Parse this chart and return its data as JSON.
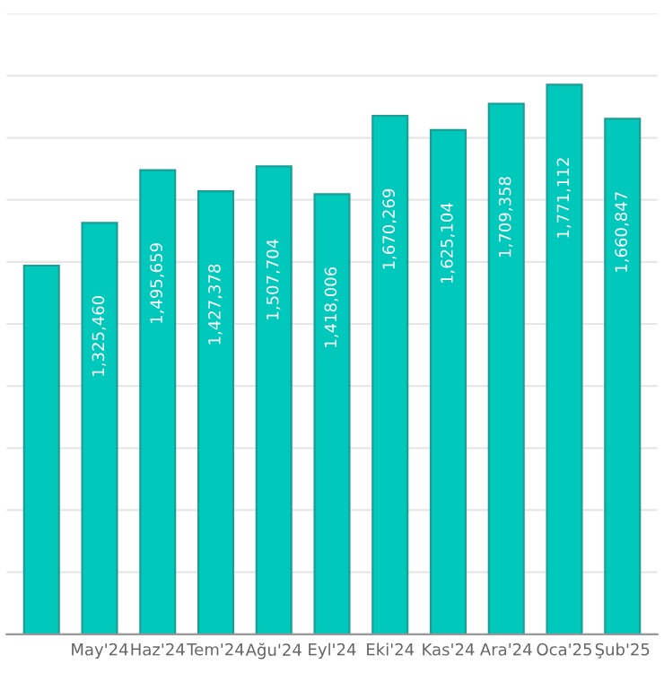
{
  "chart_data": {
    "type": "bar",
    "categories": [
      null,
      "May'24",
      "Haz'24",
      "Tem'24",
      "Ağu'24",
      "Eyl'24",
      "Eki'24",
      "Kas'24",
      "Ara'24",
      "Oca'25",
      "Şub'25"
    ],
    "values": [
      1188000,
      1325460,
      1495659,
      1427378,
      1507704,
      1418006,
      1670269,
      1625104,
      1709358,
      1771112,
      1660847
    ],
    "value_labels": [
      null,
      "1,325,460",
      "1,495,659",
      "1,427,378",
      "1,507,704",
      "1,418,006",
      "1,670,269",
      "1,625,104",
      "1,709,358",
      "1,771,112",
      "1,660,847"
    ],
    "color": "#00c9bc",
    "ylim": [
      0,
      2000000
    ],
    "yticks": [
      {
        "value": 0,
        "label": null
      },
      {
        "value": 200000,
        "label": null
      },
      {
        "value": 400000,
        "label": null
      },
      {
        "value": 600000,
        "label": null
      },
      {
        "value": 800000,
        "label": null
      },
      {
        "value": 1000000,
        "label": null
      },
      {
        "value": 1200000,
        "label": null
      },
      {
        "value": 1400000,
        "label": null
      },
      {
        "value": 1600000,
        "label": null
      },
      {
        "value": 1800000,
        "label": null
      },
      {
        "value": 2000000,
        "label": null
      }
    ],
    "grid": "y",
    "tick_labels": "x"
  }
}
